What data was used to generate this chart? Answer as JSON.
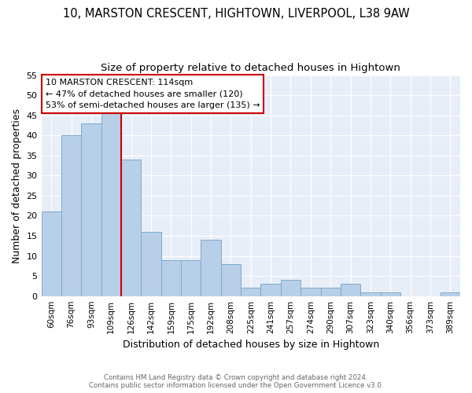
{
  "title1": "10, MARSTON CRESCENT, HIGHTOWN, LIVERPOOL, L38 9AW",
  "title2": "Size of property relative to detached houses in Hightown",
  "xlabel": "Distribution of detached houses by size in Hightown",
  "ylabel": "Number of detached properties",
  "footnote1": "Contains HM Land Registry data © Crown copyright and database right 2024.",
  "footnote2": "Contains public sector information licensed under the Open Government Licence v3.0.",
  "annotation_line1": "10 MARSTON CRESCENT: 114sqm",
  "annotation_line2": "← 47% of detached houses are smaller (120)",
  "annotation_line3": "53% of semi-detached houses are larger (135) →",
  "bar_labels": [
    "60sqm",
    "76sqm",
    "93sqm",
    "109sqm",
    "126sqm",
    "142sqm",
    "159sqm",
    "175sqm",
    "192sqm",
    "208sqm",
    "225sqm",
    "241sqm",
    "257sqm",
    "274sqm",
    "290sqm",
    "307sqm",
    "323sqm",
    "340sqm",
    "356sqm",
    "373sqm",
    "389sqm"
  ],
  "bar_values": [
    21,
    40,
    43,
    46,
    34,
    16,
    9,
    9,
    14,
    8,
    2,
    3,
    4,
    2,
    2,
    3,
    1,
    1,
    0,
    0,
    1
  ],
  "bar_color": "#b8cfe8",
  "bar_edge_color": "#7aaad0",
  "vline_color": "#cc0000",
  "vline_pos": 3.5,
  "ylim": [
    0,
    55
  ],
  "yticks": [
    0,
    5,
    10,
    15,
    20,
    25,
    30,
    35,
    40,
    45,
    50,
    55
  ],
  "annotation_box_color": "#cc0000",
  "bg_color": "#e8eef8",
  "title_fontsize": 10.5,
  "subtitle_fontsize": 9.5,
  "xlabel_fontsize": 9,
  "ylabel_fontsize": 9
}
